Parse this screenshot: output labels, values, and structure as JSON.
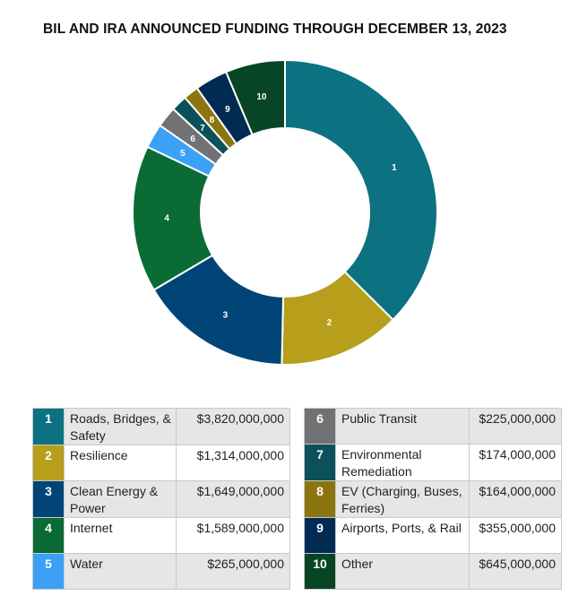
{
  "title": "BIL AND IRA ANNOUNCED FUNDING THROUGH DECEMBER 13, 2023",
  "chart_data": {
    "type": "pie",
    "title": "BIL AND IRA ANNOUNCED FUNDING THROUGH DECEMBER 13, 2023",
    "donut": true,
    "slices": [
      {
        "id": "1",
        "label": "Roads, Bridges, & Safety",
        "value": 3820000000,
        "display": "$3,820,000,000",
        "color": "#0c7180"
      },
      {
        "id": "2",
        "label": "Resilience",
        "value": 1314000000,
        "display": "$1,314,000,000",
        "color": "#b79f1b"
      },
      {
        "id": "3",
        "label": "Clean Energy & Power",
        "value": 1649000000,
        "display": "$1,649,000,000",
        "color": "#014478"
      },
      {
        "id": "4",
        "label": "Internet",
        "value": 1589000000,
        "display": "$1,589,000,000",
        "color": "#0a6b34"
      },
      {
        "id": "5",
        "label": "Water",
        "value": 265000000,
        "display": "$265,000,000",
        "color": "#3aa1f4"
      },
      {
        "id": "6",
        "label": "Public Transit",
        "value": 225000000,
        "display": "$225,000,000",
        "color": "#717274"
      },
      {
        "id": "7",
        "label": "Environmental Remediation",
        "value": 174000000,
        "display": "$174,000,000",
        "color": "#0c5059"
      },
      {
        "id": "8",
        "label": "EV (Charging, Buses, Ferries)",
        "value": 164000000,
        "display": "$164,000,000",
        "color": "#8a7511"
      },
      {
        "id": "9",
        "label": "Airports, Ports, & Rail",
        "value": 355000000,
        "display": "$355,000,000",
        "color": "#022b54"
      },
      {
        "id": "10",
        "label": "Other",
        "value": 645000000,
        "display": "$645,000,000",
        "color": "#074525"
      }
    ]
  },
  "legend": {
    "left": [
      {
        "num": "1",
        "label": "Roads, Bridges, & Safety",
        "value": "$3,820,000,000",
        "color": "#0c7180"
      },
      {
        "num": "2",
        "label": "Resilience",
        "value": "$1,314,000,000",
        "color": "#b79f1b"
      },
      {
        "num": "3",
        "label": "Clean Energy & Power",
        "value": "$1,649,000,000",
        "color": "#014478"
      },
      {
        "num": "4",
        "label": "Internet",
        "value": "$1,589,000,000",
        "color": "#0a6b34"
      },
      {
        "num": "5",
        "label": "Water",
        "value": "$265,000,000",
        "color": "#3aa1f4"
      }
    ],
    "right": [
      {
        "num": "6",
        "label": "Public Transit",
        "value": "$225,000,000",
        "color": "#717274"
      },
      {
        "num": "7",
        "label": "Environmental Remediation",
        "value": "$174,000,000",
        "color": "#0c5059"
      },
      {
        "num": "8",
        "label": "EV (Charging, Buses, Ferries)",
        "value": "$164,000,000",
        "color": "#8a7511"
      },
      {
        "num": "9",
        "label": "Airports, Ports, & Rail",
        "value": "$355,000,000",
        "color": "#022b54"
      },
      {
        "num": "10",
        "label": "Other",
        "value": "$645,000,000",
        "color": "#074525"
      }
    ]
  }
}
